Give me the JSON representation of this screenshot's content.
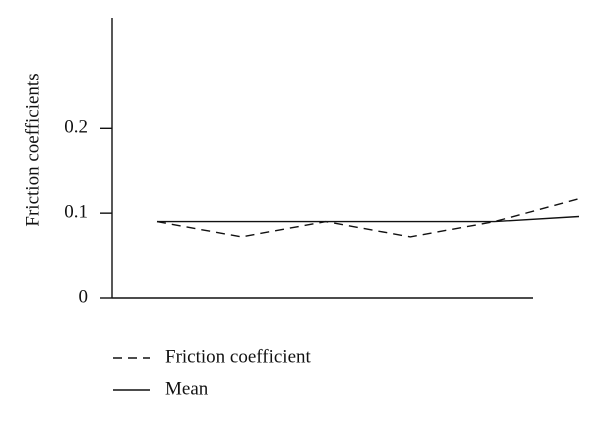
{
  "chart_data": {
    "type": "line",
    "y_label": "Friction coefficients",
    "categories": [
      null,
      null,
      null,
      null,
      null,
      null
    ],
    "series": [
      {
        "name": "Friction coefficient",
        "color": "#111111",
        "style": "dashed",
        "values": [
          0.09,
          0.072,
          0.09,
          0.072,
          0.09,
          0.117
        ]
      },
      {
        "name": "Mean",
        "color": "#111111",
        "style": "solid",
        "values": [
          0.09,
          0.09,
          0.09,
          0.09,
          0.09,
          0.096
        ]
      }
    ],
    "ylim": [
      0,
      0.33
    ],
    "yticks": [
      0,
      0.1,
      0.2
    ]
  }
}
